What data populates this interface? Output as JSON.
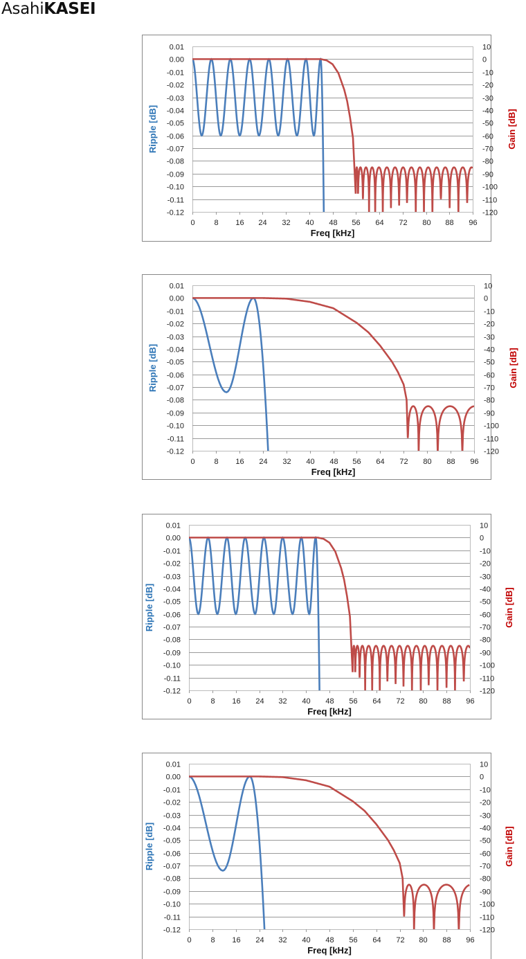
{
  "logo": {
    "part1": "Asahi",
    "part2": "KASEI"
  },
  "colors": {
    "ripple": "#4a7ebb",
    "gain": "#be4b48",
    "ripple_label": "#2e75b6",
    "gain_label": "#c00000",
    "grid": "#9a9a9a"
  },
  "chart_data": [
    {
      "type": "line",
      "xlabel": "Freq [kHz]",
      "ylabel": "Ripple [dB]",
      "y2label": "Gain [dB]",
      "xlim": [
        0,
        96
      ],
      "xticks": [
        0,
        8,
        16,
        24,
        32,
        40,
        48,
        56,
        64,
        72,
        80,
        88,
        96
      ],
      "ylim": [
        -0.12,
        0.01
      ],
      "yticks": [
        "0.01",
        "0.00",
        "-0.01",
        "-0.02",
        "-0.03",
        "-0.04",
        "-0.05",
        "-0.06",
        "-0.07",
        "-0.08",
        "-0.09",
        "-0.10",
        "-0.11",
        "-0.12"
      ],
      "y2lim": [
        -120,
        10
      ],
      "y2ticks": [
        "10",
        "0",
        "-10",
        "-20",
        "-30",
        "-40",
        "-50",
        "-60",
        "-70",
        "-80",
        "-90",
        "-100",
        "-110",
        "-120"
      ],
      "grid": true,
      "series": [
        {
          "name": "Ripple",
          "axis": "left",
          "extrema": [
            [
              0,
              0
            ],
            [
              3.2,
              -0.06
            ],
            [
              6.5,
              0
            ],
            [
              9.7,
              -0.06
            ],
            [
              13.0,
              0
            ],
            [
              16.2,
              -0.06
            ],
            [
              19.6,
              0
            ],
            [
              22.8,
              -0.06
            ],
            [
              26.2,
              0
            ],
            [
              29.4,
              -0.06
            ],
            [
              32.6,
              0
            ],
            [
              35.8,
              -0.06
            ],
            [
              38.9,
              0
            ],
            [
              41.6,
              -0.06
            ],
            [
              43.9,
              0
            ]
          ],
          "drop_to": [
            45.0,
            -0.12
          ]
        },
        {
          "name": "Gain",
          "axis": "right",
          "passband": [
            [
              0,
              0
            ],
            [
              44,
              0
            ],
            [
              46,
              -1
            ],
            [
              48,
              -4
            ],
            [
              50,
              -11
            ],
            [
              52,
              -24
            ],
            [
              53,
              -33
            ],
            [
              54,
              -46
            ],
            [
              55,
              -62
            ],
            [
              55.9,
              -105
            ]
          ],
          "stopband_peak": -85,
          "nulls": [
            [
              55.9,
              -105
            ],
            [
              56.7,
              -105
            ],
            [
              58.4,
              -110
            ],
            [
              60.5,
              -122
            ],
            [
              62.6,
              -122
            ],
            [
              65.2,
              -122
            ],
            [
              68.0,
              -117
            ],
            [
              70.8,
              -115
            ],
            [
              73.5,
              -113
            ],
            [
              76.5,
              -122
            ],
            [
              79.3,
              -122
            ],
            [
              82.2,
              -122
            ],
            [
              85.1,
              -110
            ],
            [
              88.1,
              -117
            ],
            [
              91.1,
              -122
            ],
            [
              94.1,
              -113
            ]
          ]
        }
      ]
    },
    {
      "type": "line",
      "xlabel": "Freq [kHz]",
      "ylabel": "Ripple [dB]",
      "y2label": "Gain [dB]",
      "xlim": [
        0,
        96
      ],
      "xticks": [
        0,
        8,
        16,
        24,
        32,
        40,
        48,
        56,
        64,
        72,
        80,
        88,
        96
      ],
      "ylim": [
        -0.12,
        0.01
      ],
      "yticks": [
        "0.01",
        "0.00",
        "-0.01",
        "-0.02",
        "-0.03",
        "-0.04",
        "-0.05",
        "-0.06",
        "-0.07",
        "-0.08",
        "-0.09",
        "-0.10",
        "-0.11",
        "-0.12"
      ],
      "y2lim": [
        -120,
        10
      ],
      "y2ticks": [
        "10",
        "0",
        "-10",
        "-20",
        "-30",
        "-40",
        "-50",
        "-60",
        "-70",
        "-80",
        "-90",
        "-100",
        "-110",
        "-120"
      ],
      "grid": true,
      "series": [
        {
          "name": "Ripple",
          "axis": "left",
          "extrema": [
            [
              0,
              0
            ],
            [
              11.6,
              -0.074
            ],
            [
              20.8,
              0
            ]
          ],
          "drop_to": [
            25.8,
            -0.12
          ]
        },
        {
          "name": "Gain",
          "axis": "right",
          "passband": [
            [
              0,
              0
            ],
            [
              24,
              0
            ],
            [
              32,
              -0.5
            ],
            [
              40,
              -3
            ],
            [
              48,
              -8
            ],
            [
              56,
              -19.5
            ],
            [
              60,
              -27
            ],
            [
              64,
              -37.5
            ],
            [
              68,
              -50
            ],
            [
              70,
              -58
            ],
            [
              72,
              -68
            ],
            [
              73,
              -80
            ],
            [
              73.4,
              -110
            ]
          ],
          "stopband_peak": -85,
          "nulls": [
            [
              73.4,
              -110
            ],
            [
              77.1,
              -122
            ],
            [
              83.6,
              -122
            ],
            [
              92.0,
              -122
            ]
          ]
        }
      ]
    },
    {
      "type": "line",
      "xlabel": "Freq [kHz]",
      "ylabel": "Ripple [dB]",
      "y2label": "Gain [dB]",
      "xlim": [
        0,
        96
      ],
      "xticks": [
        0,
        8,
        16,
        24,
        32,
        40,
        48,
        56,
        64,
        72,
        80,
        88,
        96
      ],
      "ylim": [
        -0.12,
        0.01
      ],
      "yticks": [
        "0.01",
        "0.00",
        "-0.01",
        "-0.02",
        "-0.03",
        "-0.04",
        "-0.05",
        "-0.06",
        "-0.07",
        "-0.08",
        "-0.09",
        "-0.10",
        "-0.11",
        "-0.12"
      ],
      "y2lim": [
        -120,
        10
      ],
      "y2ticks": [
        "10",
        "0",
        "-10",
        "-20",
        "-30",
        "-40",
        "-50",
        "-60",
        "-70",
        "-80",
        "-90",
        "-100",
        "-110",
        "-120"
      ],
      "grid": true,
      "series": [
        {
          "name": "Ripple",
          "axis": "left",
          "extrema": [
            [
              0,
              0
            ],
            [
              3.2,
              -0.06
            ],
            [
              6.55,
              0
            ],
            [
              9.7,
              -0.06
            ],
            [
              13.0,
              0
            ],
            [
              16.0,
              -0.06
            ],
            [
              19.2,
              0
            ],
            [
              22.6,
              -0.06
            ],
            [
              25.6,
              0
            ],
            [
              29.0,
              -0.06
            ],
            [
              32.0,
              0
            ],
            [
              35.4,
              -0.06
            ],
            [
              38.4,
              0
            ],
            [
              41.1,
              -0.06
            ],
            [
              43.3,
              0
            ]
          ],
          "drop_to": [
            44.6,
            -0.12
          ]
        },
        {
          "name": "Gain",
          "axis": "right",
          "passband": [
            [
              0,
              0
            ],
            [
              44,
              0
            ],
            [
              46,
              -1
            ],
            [
              48,
              -4
            ],
            [
              50,
              -11
            ],
            [
              52,
              -24
            ],
            [
              53,
              -33
            ],
            [
              54,
              -46
            ],
            [
              55,
              -62
            ],
            [
              55.9,
              -105
            ]
          ],
          "stopband_peak": -85,
          "nulls": [
            [
              55.9,
              -105
            ],
            [
              56.8,
              -105
            ],
            [
              58.3,
              -110
            ],
            [
              60.2,
              -122
            ],
            [
              62.6,
              -122
            ],
            [
              65.2,
              -122
            ],
            [
              67.8,
              -113
            ],
            [
              70.6,
              -115
            ],
            [
              73.3,
              -117
            ],
            [
              76.2,
              -122
            ],
            [
              79.2,
              -122
            ],
            [
              81.9,
              -116
            ],
            [
              84.9,
              -122
            ],
            [
              88.0,
              -118
            ],
            [
              90.9,
              -122
            ],
            [
              93.9,
              -113
            ]
          ]
        }
      ]
    },
    {
      "type": "line",
      "xlabel": "Freq [kHz]",
      "ylabel": "Ripple [dB]",
      "y2label": "Gain [dB]",
      "xlim": [
        0,
        96
      ],
      "xticks": [
        0,
        8,
        16,
        24,
        32,
        40,
        48,
        56,
        64,
        72,
        80,
        88,
        96
      ],
      "ylim": [
        -0.12,
        0.01
      ],
      "yticks": [
        "0.01",
        "0.00",
        "-0.01",
        "-0.02",
        "-0.03",
        "-0.04",
        "-0.05",
        "-0.06",
        "-0.07",
        "-0.08",
        "-0.09",
        "-0.10",
        "-0.11",
        "-0.12"
      ],
      "y2lim": [
        -120,
        10
      ],
      "y2ticks": [
        "10",
        "0",
        "-10",
        "-20",
        "-30",
        "-40",
        "-50",
        "-60",
        "-70",
        "-80",
        "-90",
        "-100",
        "-110",
        "-120"
      ],
      "grid": true,
      "series": [
        {
          "name": "Ripple",
          "axis": "left",
          "extrema": [
            [
              0,
              0
            ],
            [
              11.6,
              -0.074
            ],
            [
              20.8,
              0
            ]
          ],
          "drop_to": [
            25.8,
            -0.12
          ]
        },
        {
          "name": "Gain",
          "axis": "right",
          "passband": [
            [
              0,
              0
            ],
            [
              24,
              0
            ],
            [
              32,
              -0.5
            ],
            [
              40,
              -3
            ],
            [
              48,
              -8
            ],
            [
              56,
              -19.5
            ],
            [
              60,
              -27
            ],
            [
              64,
              -37.5
            ],
            [
              68,
              -50
            ],
            [
              70,
              -58
            ],
            [
              72,
              -68
            ],
            [
              73,
              -80
            ],
            [
              73.5,
              -110
            ]
          ],
          "stopband_peak": -85,
          "nulls": [
            [
              73.5,
              -110
            ],
            [
              76.9,
              -122
            ],
            [
              83.7,
              -122
            ],
            [
              92.2,
              -122
            ]
          ]
        }
      ]
    }
  ]
}
